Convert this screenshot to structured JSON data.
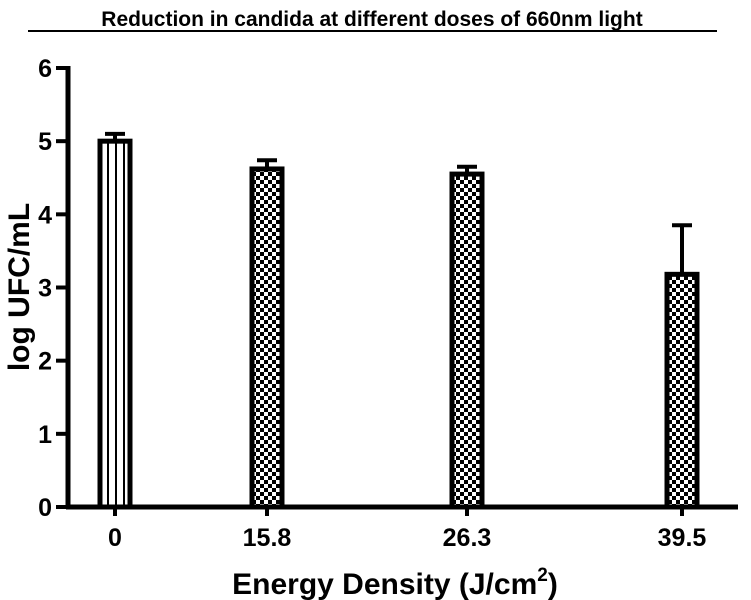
{
  "chart_data": {
    "type": "bar",
    "title": "Reduction in candida at different doses of 660nm light",
    "xlabel": "Energy Density (J/cm",
    "xlabel_sup": "2",
    "xlabel_close": ")",
    "ylabel": "log UFC/mL",
    "ylim": [
      0,
      6
    ],
    "yticks": [
      0,
      1,
      2,
      3,
      4,
      5,
      6
    ],
    "categories": [
      "0",
      "15.8",
      "26.3",
      "39.5"
    ],
    "values": [
      5.0,
      4.62,
      4.55,
      3.18
    ],
    "errors": [
      0.1,
      0.12,
      0.1,
      0.67
    ],
    "patterns": [
      "stripes",
      "checker",
      "checker",
      "checker"
    ],
    "colors": {
      "bar_stroke": "#000000",
      "fill_light": "#ffffff",
      "fill_dark": "#000000"
    }
  }
}
